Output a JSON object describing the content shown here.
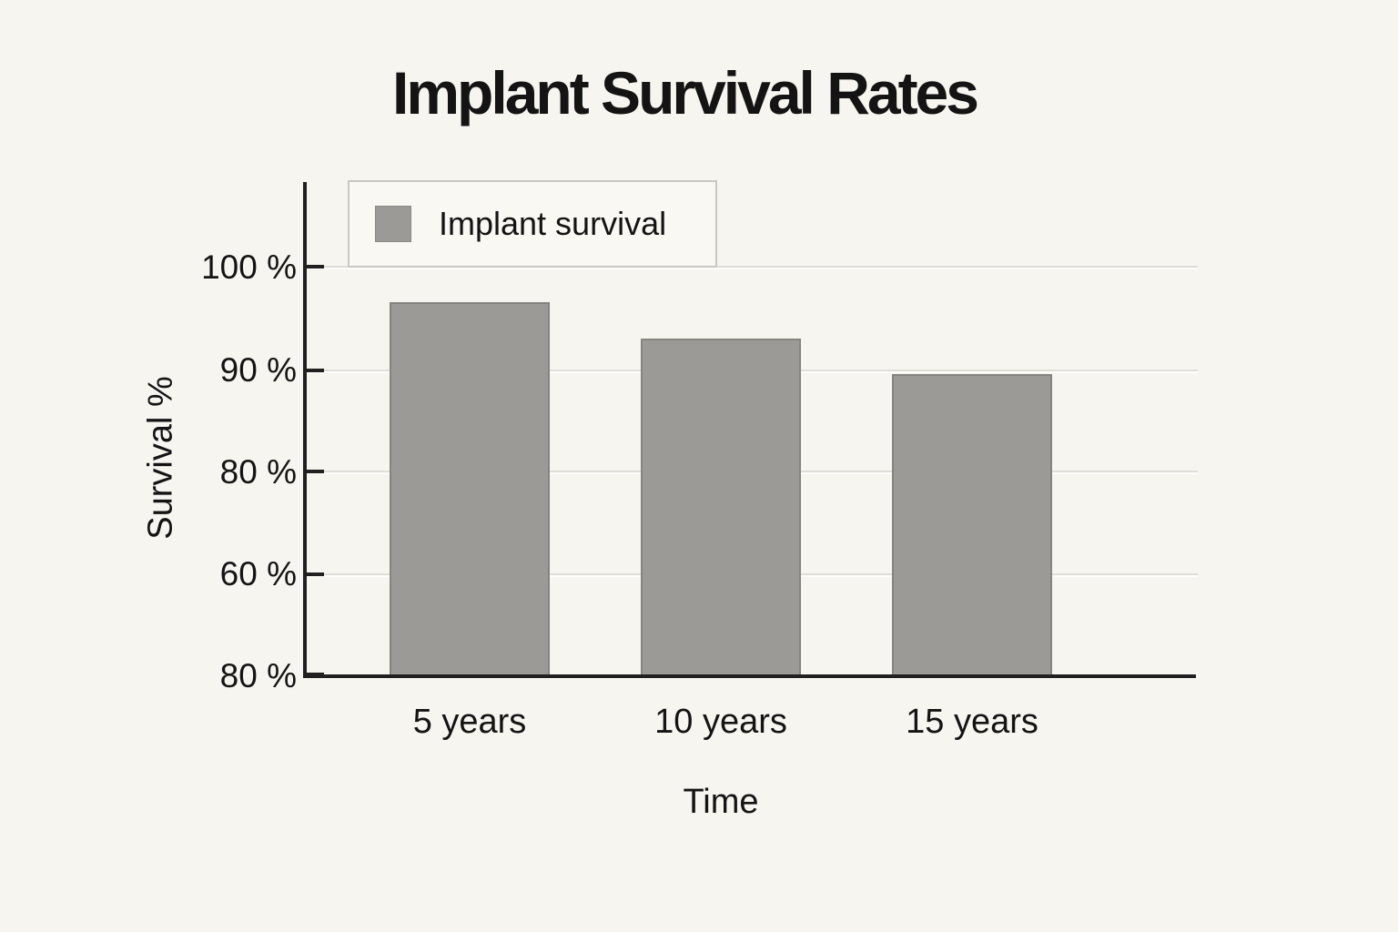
{
  "chart_data": {
    "type": "bar",
    "title": "Implant Survival Rates",
    "xlabel": "Time",
    "ylabel": "Survival %",
    "categories": [
      "5 years",
      "10 years",
      "15 years"
    ],
    "values": [
      96.5,
      93,
      89.5
    ],
    "value_unit": "%",
    "series": [
      {
        "name": "Implant survival",
        "values": [
          96.5,
          93,
          89.5
        ]
      }
    ],
    "legend": {
      "position": "top-left",
      "entries": [
        {
          "label": "Implant survival",
          "swatch_color": "#9b9a97"
        }
      ]
    },
    "y_axis": {
      "grid": true,
      "tick_labels_top_to_bottom": [
        "100 %",
        "90 %",
        "80 %",
        "60 %",
        "80 %"
      ]
    },
    "colors": {
      "background": "#f7f5f0",
      "bar_fill": "#9b9a97",
      "bar_border": "#858480",
      "axis": "#202020",
      "gridline": "#dfddd6",
      "text": "#141414",
      "legend_fill": "#f9f8f3",
      "legend_border": "#c9c7c0"
    }
  }
}
